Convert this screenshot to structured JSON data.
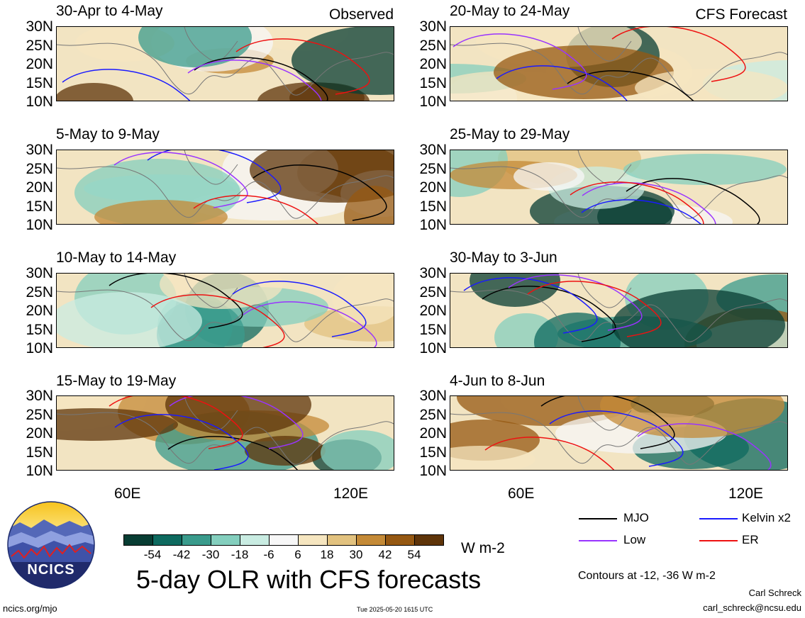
{
  "header": {
    "left_tag": "Observed",
    "right_tag": "CFS Forecast"
  },
  "panels_left": [
    {
      "title": "30-Apr to 4-May"
    },
    {
      "title": "5-May to 9-May"
    },
    {
      "title": "10-May to 14-May"
    },
    {
      "title": "15-May to 19-May"
    }
  ],
  "panels_right": [
    {
      "title": "20-May to 24-May"
    },
    {
      "title": "25-May to 29-May"
    },
    {
      "title": "30-May to 3-Jun"
    },
    {
      "title": "4-Jun to 8-Jun"
    }
  ],
  "lat_labels": [
    "30N",
    "25N",
    "20N",
    "15N",
    "10N"
  ],
  "lon_labels": [
    "60E",
    "120E"
  ],
  "colorbar": {
    "colors": [
      "#083d33",
      "#0e6a5f",
      "#3a9b8c",
      "#84cfbe",
      "#c9ece2",
      "#f7f7f7",
      "#f6e6c0",
      "#e2c27f",
      "#c48a37",
      "#955812",
      "#5e3409"
    ],
    "labels": [
      "-54",
      "-42",
      "-30",
      "-18",
      "-6",
      "6",
      "18",
      "30",
      "42",
      "54"
    ],
    "units": "W m-2"
  },
  "legend": {
    "items": [
      {
        "label": "MJO",
        "color": "#000000"
      },
      {
        "label": "Kelvin x2",
        "color": "#1a1aff"
      },
      {
        "label": "Low",
        "color": "#9933ff"
      },
      {
        "label": "ER",
        "color": "#ee1111"
      }
    ],
    "contours_note": "Contours at -12, -36 W m-2"
  },
  "main_title": "5-day OLR with CFS forecasts",
  "logo_text": "NCICS",
  "footer": {
    "url": "ncics.org/mjo",
    "timestamp": "Tue 2025-05-20 1615 UTC",
    "author": "Carl Schreck",
    "email": "carl_schreck@ncsu.edu"
  }
}
